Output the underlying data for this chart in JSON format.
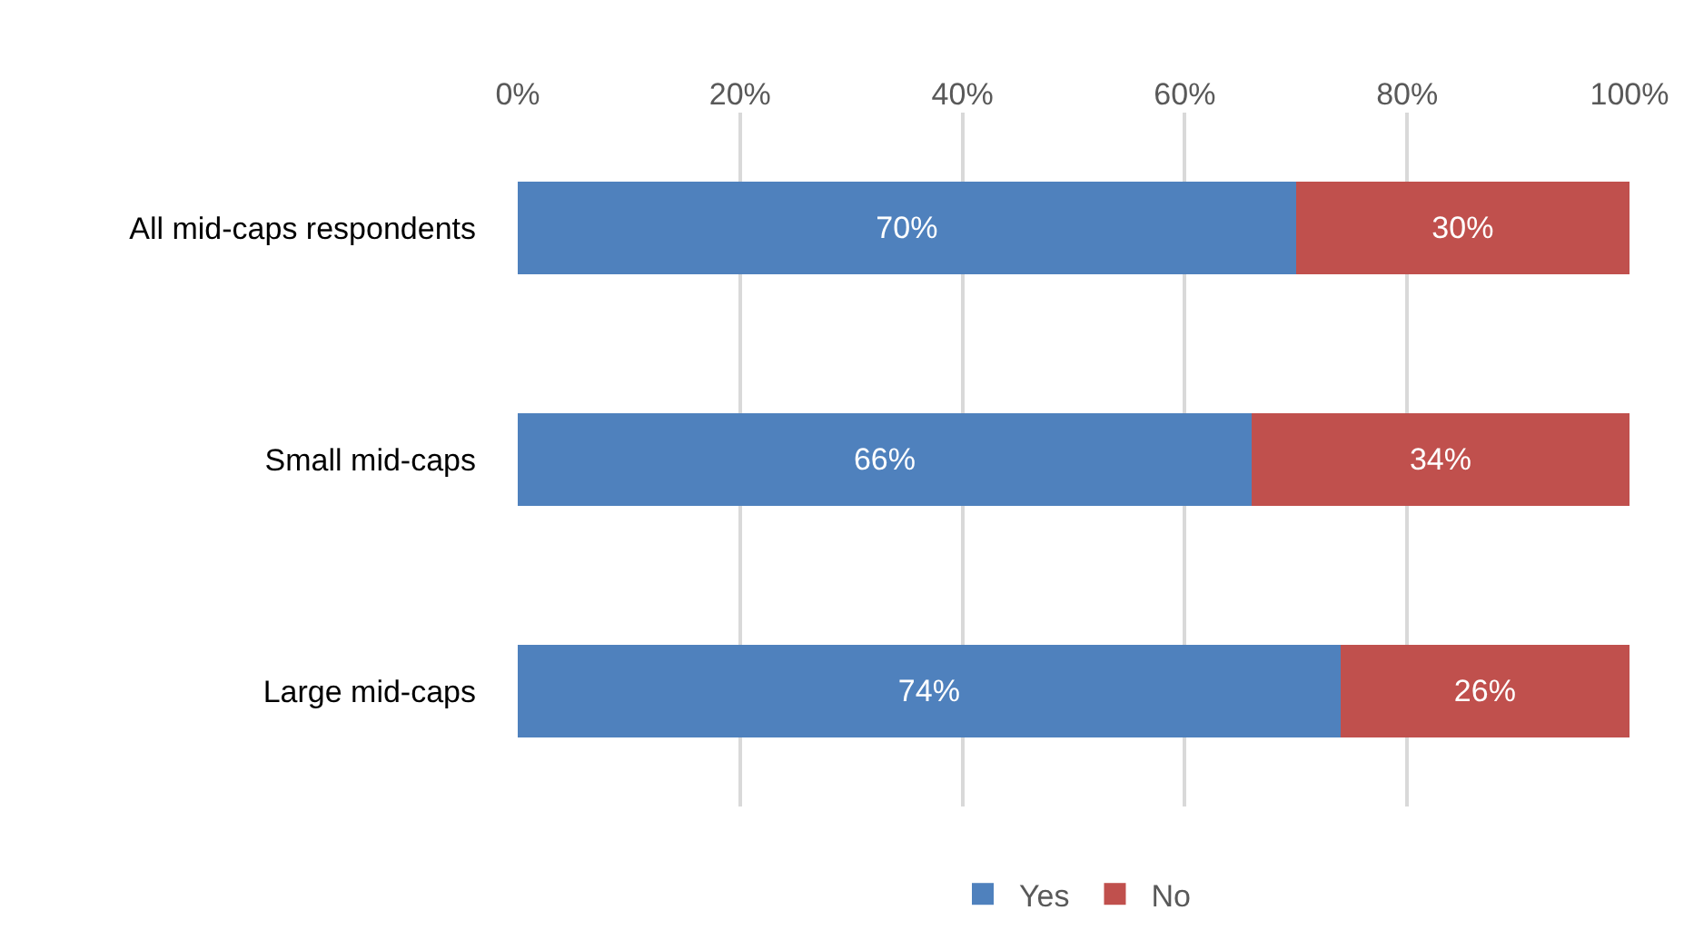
{
  "chart_data": {
    "type": "bar",
    "orientation": "horizontal",
    "stacked": true,
    "categories": [
      "All mid-caps respondents",
      "Small mid-caps",
      "Large mid-caps"
    ],
    "series": [
      {
        "name": "Yes",
        "color": "#4f81bd",
        "values": [
          70,
          66,
          74
        ],
        "value_labels": [
          "70%",
          "66%",
          "74%"
        ]
      },
      {
        "name": "No",
        "color": "#c0504d",
        "values": [
          30,
          34,
          26
        ],
        "value_labels": [
          "30%",
          "34%",
          "26%"
        ]
      }
    ],
    "xlim": [
      0,
      100
    ],
    "xticks": [
      {
        "value": 0,
        "label": "0%"
      },
      {
        "value": 20,
        "label": "20%"
      },
      {
        "value": 40,
        "label": "40%"
      },
      {
        "value": 60,
        "label": "60%"
      },
      {
        "value": 80,
        "label": "80%"
      },
      {
        "value": 100,
        "label": "100%"
      }
    ],
    "grid": "x",
    "legend": "bottom"
  }
}
